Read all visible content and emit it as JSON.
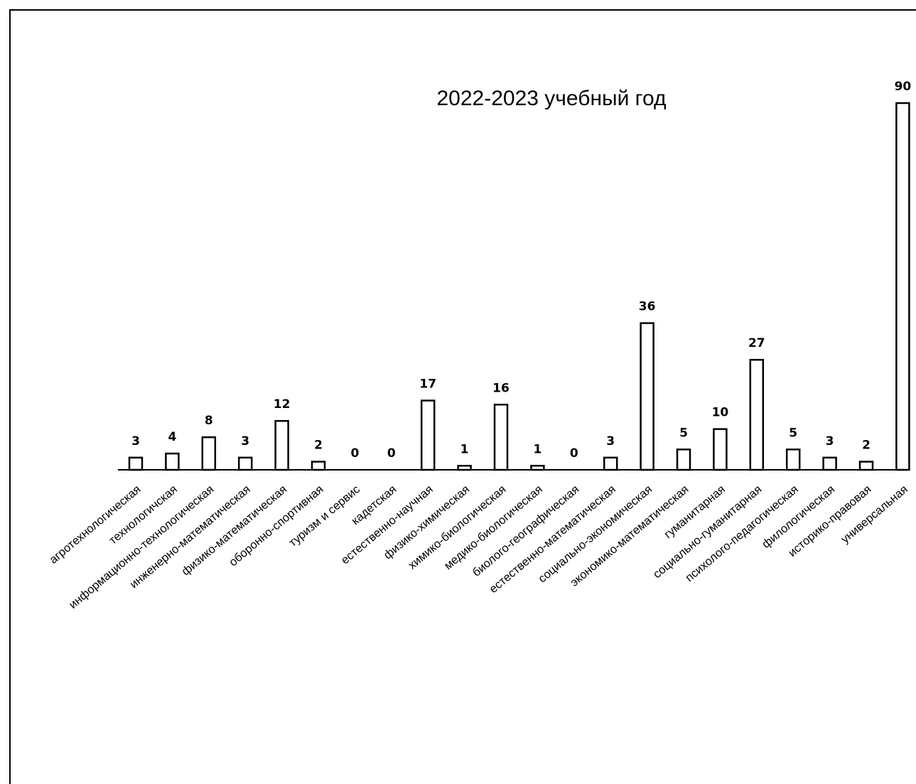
{
  "chart_data": {
    "type": "bar",
    "title": "2022-2023 учебный год",
    "xlabel": "",
    "ylabel": "",
    "ylim": [
      0,
      90
    ],
    "grid": false,
    "legend": "none",
    "bar_style": "outline",
    "bar_color": "#000000",
    "categories": [
      "агротехнологическая",
      "технологичская",
      "информационно-технологическая",
      "инженерно-математическая",
      "физико-математическая",
      "оборонно-спортивная",
      "туризм и сервис",
      "кадетская",
      "естественно-научная",
      "физико-химическая",
      "химико-биологическая",
      "медико-биологическая",
      "биолого-географическая",
      "естественно-математическая",
      "социально-экономическая",
      "экономико-математическая",
      "гуманитарная",
      "социально-гуманитарная",
      "психолого-педагогическая",
      "филологическая",
      "историко-правовая",
      "универсальная"
    ],
    "values": [
      3,
      4,
      8,
      3,
      12,
      2,
      0,
      0,
      17,
      1,
      16,
      1,
      0,
      3,
      36,
      5,
      10,
      27,
      5,
      3,
      2,
      90
    ]
  }
}
